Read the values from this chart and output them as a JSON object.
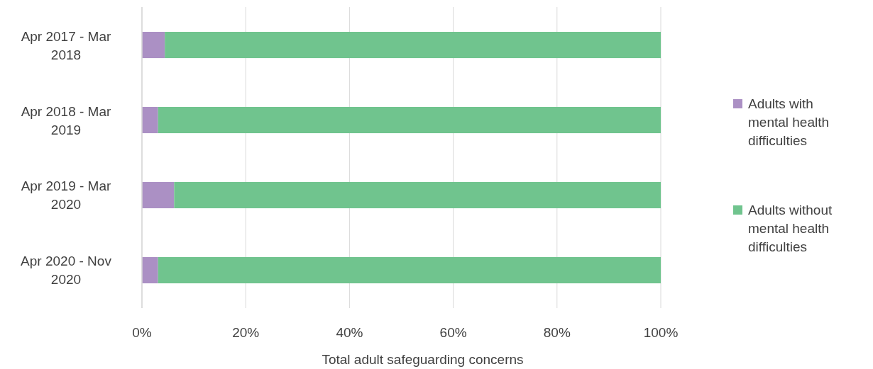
{
  "chart_data": {
    "type": "bar",
    "orientation": "horizontal",
    "stacked": true,
    "xlabel": "Total adult safeguarding concerns",
    "categories": [
      "Apr 2017 - Mar 2018",
      "Apr 2018 - Mar 2019",
      "Apr 2019 - Mar 2020",
      "Apr 2020 - Nov 2020"
    ],
    "series": [
      {
        "name": "Adults with mental health difficulties",
        "color": "#ab90c4",
        "values": [
          4.4,
          3.1,
          6.2,
          3.1
        ]
      },
      {
        "name": "Adults without mental health difficulties",
        "color": "#70c48e",
        "values": [
          95.6,
          96.9,
          93.8,
          96.9
        ]
      }
    ],
    "xlim": [
      0,
      100
    ],
    "xticks": [
      {
        "value": 0,
        "label": "0%"
      },
      {
        "value": 20,
        "label": "20%"
      },
      {
        "value": 40,
        "label": "40%"
      },
      {
        "value": 60,
        "label": "60%"
      },
      {
        "value": 80,
        "label": "80%"
      },
      {
        "value": 100,
        "label": "100%"
      }
    ],
    "grid": "x",
    "legend": "right"
  }
}
